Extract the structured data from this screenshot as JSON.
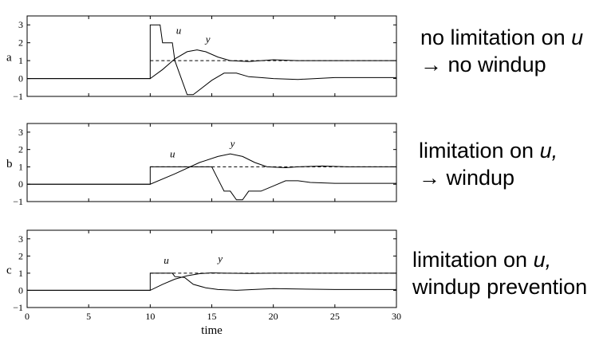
{
  "chart_data": [
    {
      "type": "line",
      "panel_label": "a",
      "xlim": [
        0,
        30
      ],
      "ylim": [
        -1,
        3.5
      ],
      "yticks": [
        "3",
        "2",
        "1",
        "0",
        "−1"
      ],
      "series": [
        {
          "name": "u",
          "x": [
            0,
            10,
            10,
            10.8,
            11,
            11.8,
            12,
            13,
            13.5,
            15,
            16,
            17,
            18,
            19,
            20,
            22,
            25,
            30
          ],
          "y": [
            0,
            0,
            3,
            3,
            2,
            2,
            1,
            -0.9,
            -0.9,
            -0.1,
            0.3,
            0.3,
            0.1,
            0.05,
            0,
            -0.05,
            0.05,
            0.05
          ]
        },
        {
          "name": "y",
          "x": [
            0,
            10,
            11,
            12,
            13,
            13.8,
            14.5,
            15.5,
            16.5,
            18,
            20,
            22,
            25,
            30
          ],
          "y": [
            0,
            0,
            0.5,
            1.1,
            1.5,
            1.6,
            1.5,
            1.2,
            1.0,
            0.95,
            1.05,
            1.0,
            1.0,
            1.0
          ]
        },
        {
          "name": "setpoint",
          "x": [
            10,
            30
          ],
          "y": [
            1,
            1
          ]
        }
      ],
      "annotations": [
        {
          "text": "u",
          "x": 12.1,
          "y": 2.5
        },
        {
          "text": "y",
          "x": 14.5,
          "y": 2.0
        }
      ],
      "caption": [
        "no limitation on ",
        "u",
        "→ no windup"
      ]
    },
    {
      "type": "line",
      "panel_label": "b",
      "xlim": [
        0,
        30
      ],
      "ylim": [
        -1,
        3.5
      ],
      "yticks": [
        "3",
        "2",
        "1",
        "0",
        "−1"
      ],
      "series": [
        {
          "name": "u",
          "x": [
            0,
            10,
            10,
            15,
            15.5,
            16,
            16.5,
            17,
            17.5,
            18,
            19,
            20,
            21,
            22,
            23,
            25,
            30
          ],
          "y": [
            0,
            0,
            1,
            1,
            0.3,
            -0.4,
            -0.4,
            -0.9,
            -0.9,
            -0.4,
            -0.4,
            -0.1,
            0.2,
            0.2,
            0.1,
            0.05,
            0.05
          ]
        },
        {
          "name": "y",
          "x": [
            0,
            10,
            12,
            14,
            15.5,
            16.5,
            17.5,
            18.5,
            19.5,
            21,
            22,
            24,
            26,
            30
          ],
          "y": [
            0,
            0,
            0.6,
            1.25,
            1.6,
            1.75,
            1.6,
            1.25,
            1.0,
            0.95,
            1.0,
            1.05,
            1.0,
            1.0
          ]
        },
        {
          "name": "setpoint",
          "x": [
            10,
            30
          ],
          "y": [
            1,
            1
          ]
        }
      ],
      "annotations": [
        {
          "text": "u",
          "x": 11.6,
          "y": 1.55
        },
        {
          "text": "y",
          "x": 16.5,
          "y": 2.15
        }
      ],
      "caption": [
        "limitation on ",
        "u,",
        "→ windup"
      ]
    },
    {
      "type": "line",
      "panel_label": "c",
      "xlim": [
        0,
        30
      ],
      "ylim": [
        -1,
        3.5
      ],
      "yticks": [
        "3",
        "2",
        "1",
        "0",
        "−1"
      ],
      "xticks": [
        "0",
        "5",
        "10",
        "15",
        "20",
        "25",
        "30"
      ],
      "xlabel": "time",
      "series": [
        {
          "name": "u",
          "x": [
            0,
            10,
            10,
            11.8,
            12,
            12.8,
            13.5,
            14.5,
            15.5,
            17,
            20,
            25,
            30
          ],
          "y": [
            1e-09,
            0,
            1,
            1,
            0.8,
            0.75,
            0.35,
            0.15,
            0.05,
            0.0,
            0.1,
            0.05,
            0.05
          ]
        },
        {
          "name": "y",
          "x": [
            0,
            10,
            11,
            12,
            13,
            14,
            15,
            16,
            18,
            20,
            30
          ],
          "y": [
            0,
            0,
            0.35,
            0.65,
            0.85,
            0.97,
            1.02,
            1.0,
            0.98,
            1.0,
            1.0
          ]
        },
        {
          "name": "setpoint",
          "x": [
            10,
            30
          ],
          "y": [
            1,
            1
          ]
        }
      ],
      "annotations": [
        {
          "text": "u",
          "x": 11.1,
          "y": 1.55
        },
        {
          "text": "y",
          "x": 15.5,
          "y": 1.65
        }
      ],
      "caption": [
        "limitation on ",
        "u,",
        "windup prevention"
      ]
    }
  ]
}
